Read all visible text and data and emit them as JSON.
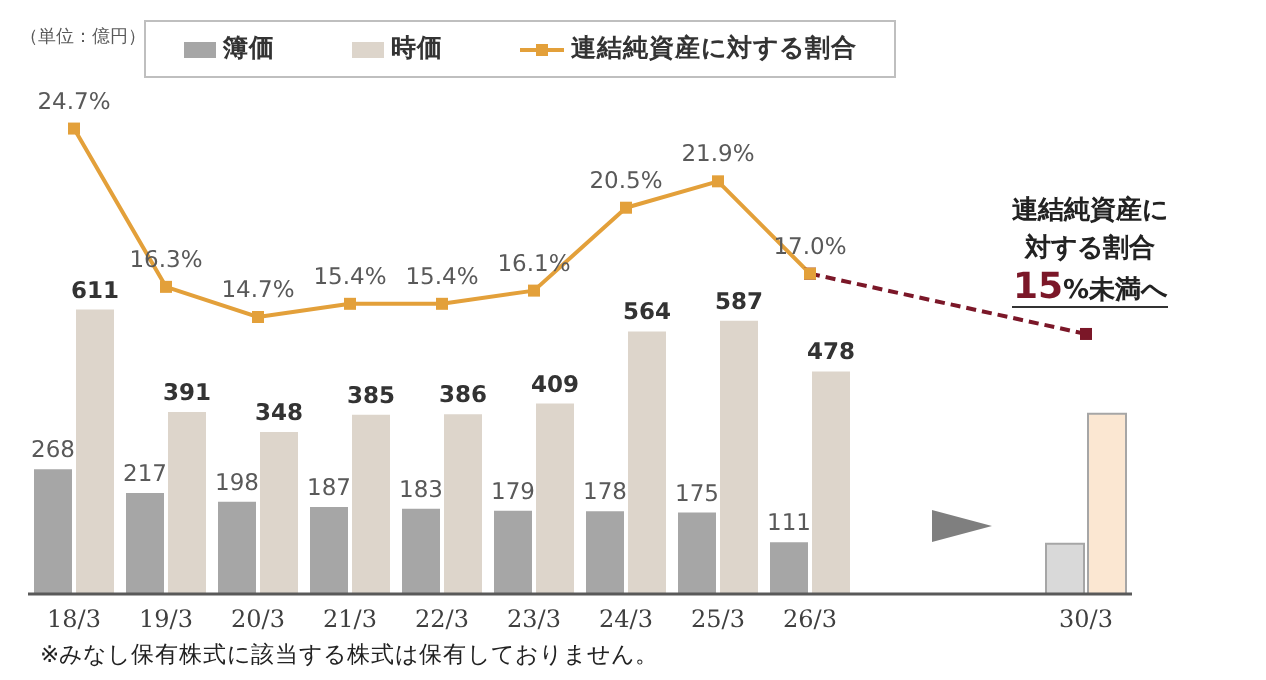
{
  "chart_data": {
    "type": "bar",
    "categories": [
      "18/3",
      "19/3",
      "20/3",
      "21/3",
      "22/3",
      "23/3",
      "24/3",
      "25/3",
      "26/3",
      null,
      null,
      "30/3"
    ],
    "series": [
      {
        "name": "簿価",
        "color": "#a6a6a6",
        "colors": [
          "#a6a6a6",
          "#a6a6a6",
          "#a6a6a6",
          "#a6a6a6",
          "#a6a6a6",
          "#a6a6a6",
          "#a6a6a6",
          "#a6a6a6",
          "#a6a6a6",
          null,
          null,
          "#d9d9d9"
        ],
        "values": [
          268,
          217,
          198,
          187,
          183,
          179,
          178,
          175,
          111,
          null,
          null,
          108
        ],
        "value_labels": [
          "268",
          "217",
          "198",
          "187",
          "183",
          "179",
          "178",
          "175",
          "111",
          null,
          null,
          null
        ]
      },
      {
        "name": "時価",
        "color": "#ddd5cb",
        "colors": [
          "#ddd5cb",
          "#ddd5cb",
          "#ddd5cb",
          "#ddd5cb",
          "#ddd5cb",
          "#ddd5cb",
          "#ddd5cb",
          "#ddd5cb",
          "#ddd5cb",
          null,
          null,
          "#fbe7d2"
        ],
        "values": [
          611,
          391,
          348,
          385,
          386,
          409,
          564,
          587,
          478,
          null,
          null,
          387
        ],
        "value_labels": [
          "611",
          "391",
          "348",
          "385",
          "386",
          "409",
          "564",
          "587",
          "478",
          null,
          null,
          null
        ]
      },
      {
        "type": "line",
        "axis": "y2",
        "color": "#7b1728",
        "line_style": "dashed",
        "values": [
          null,
          null,
          null,
          null,
          null,
          null,
          null,
          null,
          17.0,
          null,
          null,
          13.8
        ]
      },
      {
        "name": "連結純資産に対する割合",
        "type": "line",
        "axis": "y2",
        "color": "#e3a03a",
        "line_style": "solid",
        "values": [
          24.7,
          16.3,
          14.7,
          15.4,
          15.4,
          16.1,
          20.5,
          21.9,
          17.0,
          null,
          null,
          null
        ],
        "value_labels": [
          "24.7%",
          "16.3%",
          "14.7%",
          "15.4%",
          "15.4%",
          "16.1%",
          "20.5%",
          "21.9%",
          "17.0%",
          null,
          null,
          null
        ]
      }
    ],
    "ylim": [
      0,
      1190
    ],
    "y2lim": [
      0,
      29.4
    ],
    "tick_labels": "x",
    "marker": "square",
    "legend": "top",
    "annotations": [
      "（単位：億円）",
      "※みなし保有株式に該当する株式は保有しておりません。",
      "連結純資産に対する割合15%未満へ"
    ]
  }
}
